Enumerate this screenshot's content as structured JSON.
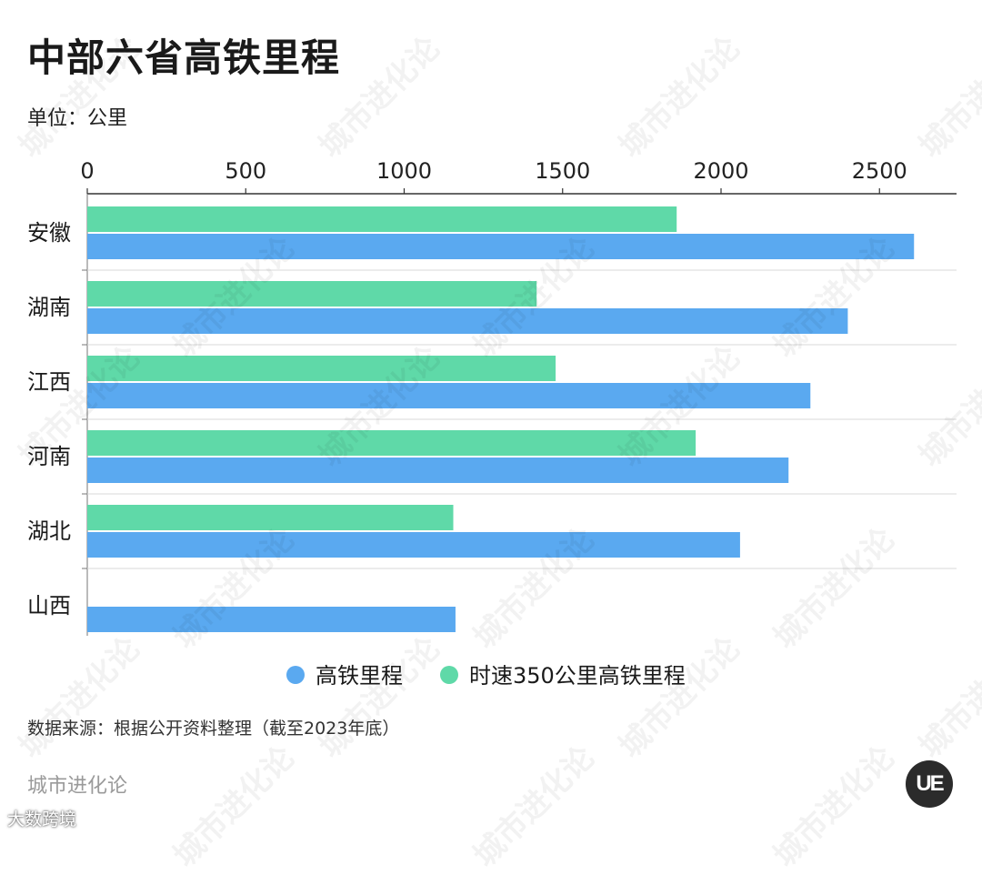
{
  "title": "中部六省高铁里程",
  "unit_label": "单位：公里",
  "source": "数据来源：根据公开资料整理（截至2023年底）",
  "brand": "城市进化论",
  "logo_text": "UE",
  "footer_mark": "大数跨境",
  "watermark_text": "城市进化论",
  "colors": {
    "high_speed": "#5aa9f0",
    "speed_350": "#5fd9a8",
    "grid": "#d9d9d9",
    "axis": "#333333"
  },
  "chart_data": {
    "type": "bar",
    "orientation": "horizontal",
    "categories": [
      "安徽",
      "湖南",
      "江西",
      "河南",
      "湖北",
      "山西"
    ],
    "series": [
      {
        "name": "高铁里程",
        "values": [
          2609,
          2400,
          2282,
          2213,
          2060,
          1162
        ]
      },
      {
        "name": "时速350公里高铁里程",
        "values": [
          1860,
          1418,
          1478,
          1920,
          1155,
          null
        ]
      }
    ],
    "xlim": [
      0,
      2750
    ],
    "ticks": [
      0,
      500,
      1000,
      1500,
      2000,
      2500
    ],
    "tick_labels": [
      "0",
      "500",
      "1000",
      "1500",
      "2000",
      "2500"
    ],
    "xlabel": "",
    "ylabel": "",
    "legend_position": "bottom",
    "grid": "horizontal separators"
  }
}
